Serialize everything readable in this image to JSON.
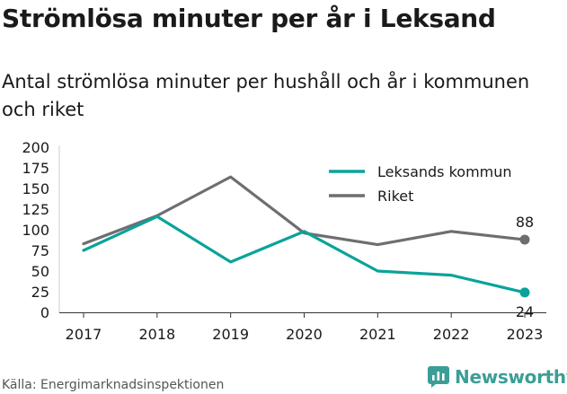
{
  "header": {
    "title": "Strömlösa minuter per år i Leksand",
    "subtitle": "Antal strömlösa minuter per hushåll och år i kommunen och riket"
  },
  "footer": {
    "source": "Källa: Energimarknadsinspektionen",
    "brand": "Newsworthy"
  },
  "colors": {
    "leksand": "#0aa39a",
    "riket": "#6e6e72",
    "brand": "#3b9e96"
  },
  "chart_data": {
    "type": "line",
    "x": [
      "2017",
      "2018",
      "2019",
      "2020",
      "2021",
      "2022",
      "2023"
    ],
    "ylim": [
      0,
      200
    ],
    "yticks": [
      "0",
      "25",
      "50",
      "75",
      "100",
      "125",
      "150",
      "175",
      "200"
    ],
    "grid": false,
    "legend_position": "top-right",
    "series": [
      {
        "name": "Leksands kommun",
        "values": [
          75,
          116,
          61,
          98,
          50,
          45,
          24
        ],
        "end_label": "24"
      },
      {
        "name": "Riket",
        "values": [
          83,
          117,
          164,
          96,
          82,
          98,
          88
        ],
        "end_label": "88"
      }
    ]
  }
}
